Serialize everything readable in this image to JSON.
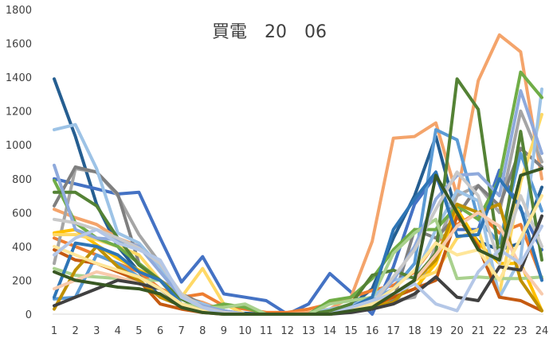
{
  "chart_data": {
    "type": "line",
    "title": "買電　20　06",
    "xlabel": "",
    "ylabel": "",
    "x": [
      1,
      2,
      3,
      4,
      5,
      6,
      7,
      8,
      9,
      10,
      11,
      12,
      13,
      14,
      15,
      16,
      17,
      18,
      19,
      20,
      21,
      22,
      23,
      24
    ],
    "ylim": [
      0,
      1800
    ],
    "yticks": [
      0,
      200,
      400,
      600,
      800,
      1000,
      1200,
      1400,
      1600,
      1800
    ],
    "grid": false,
    "legend": "none",
    "series": [
      {
        "color": "#255e91",
        "values": [
          1390,
          1050,
          650,
          400,
          250,
          100,
          50,
          20,
          10,
          5,
          0,
          0,
          0,
          0,
          50,
          150,
          450,
          700,
          1050,
          580,
          430,
          380,
          420,
          750
        ]
      },
      {
        "color": "#4472c4",
        "values": [
          800,
          770,
          740,
          710,
          720,
          450,
          190,
          340,
          120,
          100,
          80,
          0,
          60,
          240,
          130,
          0,
          280,
          650,
          820,
          500,
          500,
          850,
          620,
          380
        ]
      },
      {
        "color": "#ed7d31",
        "values": [
          450,
          400,
          350,
          300,
          250,
          150,
          100,
          120,
          50,
          30,
          10,
          10,
          30,
          60,
          100,
          140,
          170,
          250,
          420,
          530,
          600,
          480,
          530,
          210
        ]
      },
      {
        "color": "#f4a46b",
        "values": [
          620,
          570,
          530,
          450,
          400,
          300,
          100,
          70,
          20,
          0,
          0,
          0,
          10,
          30,
          100,
          430,
          1040,
          1050,
          1130,
          700,
          1380,
          1650,
          1550,
          800
        ]
      },
      {
        "color": "#a5a5a5",
        "values": [
          300,
          860,
          840,
          700,
          470,
          300,
          100,
          60,
          20,
          0,
          0,
          0,
          0,
          20,
          30,
          40,
          80,
          100,
          400,
          700,
          760,
          600,
          1200,
          900
        ]
      },
      {
        "color": "#7f7f7f",
        "values": [
          640,
          870,
          840,
          710,
          300,
          200,
          120,
          60,
          20,
          0,
          0,
          0,
          0,
          0,
          20,
          40,
          80,
          500,
          450,
          580,
          760,
          640,
          980,
          870
        ]
      },
      {
        "color": "#ffc000",
        "values": [
          480,
          500,
          410,
          330,
          260,
          200,
          50,
          20,
          0,
          0,
          0,
          0,
          0,
          0,
          20,
          40,
          100,
          150,
          300,
          620,
          420,
          300,
          300,
          20
        ]
      },
      {
        "color": "#ffd966",
        "values": [
          470,
          470,
          440,
          400,
          350,
          200,
          100,
          270,
          60,
          0,
          0,
          0,
          0,
          20,
          40,
          60,
          120,
          200,
          250,
          450,
          500,
          120,
          780,
          1180
        ]
      },
      {
        "color": "#5b9bd5",
        "values": [
          90,
          100,
          350,
          300,
          220,
          150,
          60,
          20,
          0,
          0,
          0,
          0,
          0,
          0,
          40,
          80,
          150,
          300,
          1090,
          1030,
          560,
          420,
          950,
          610
        ]
      },
      {
        "color": "#9dc3e6",
        "values": [
          1090,
          1120,
          860,
          480,
          420,
          280,
          100,
          60,
          20,
          0,
          0,
          0,
          0,
          30,
          50,
          100,
          200,
          220,
          500,
          730,
          670,
          100,
          330,
          1330
        ]
      },
      {
        "color": "#70ad47",
        "values": [
          790,
          540,
          450,
          400,
          300,
          200,
          60,
          30,
          60,
          40,
          0,
          0,
          0,
          80,
          100,
          210,
          380,
          500,
          500,
          640,
          560,
          800,
          1430,
          1280
        ]
      },
      {
        "color": "#548235",
        "values": [
          720,
          720,
          640,
          450,
          290,
          200,
          90,
          30,
          10,
          0,
          0,
          0,
          0,
          20,
          60,
          230,
          260,
          210,
          360,
          1390,
          1210,
          330,
          1080,
          320
        ]
      },
      {
        "color": "#a9d18e",
        "values": [
          270,
          230,
          220,
          210,
          200,
          200,
          60,
          40,
          40,
          60,
          0,
          0,
          0,
          60,
          80,
          100,
          360,
          480,
          560,
          210,
          220,
          210,
          210,
          220
        ]
      },
      {
        "color": "#8faadc",
        "values": [
          880,
          500,
          450,
          440,
          400,
          250,
          100,
          50,
          20,
          0,
          0,
          0,
          0,
          0,
          30,
          60,
          200,
          400,
          680,
          820,
          830,
          700,
          1320,
          950
        ]
      },
      {
        "color": "#c55a11",
        "values": [
          380,
          320,
          300,
          250,
          200,
          60,
          30,
          10,
          0,
          0,
          0,
          0,
          0,
          0,
          20,
          50,
          100,
          150,
          200,
          580,
          400,
          100,
          80,
          20
        ]
      },
      {
        "color": "#bf9000",
        "values": [
          30,
          260,
          400,
          280,
          200,
          100,
          50,
          20,
          0,
          0,
          0,
          0,
          0,
          0,
          20,
          40,
          70,
          200,
          320,
          650,
          600,
          650,
          200,
          20
        ]
      },
      {
        "color": "#2e75b6",
        "values": [
          100,
          420,
          400,
          350,
          250,
          200,
          60,
          20,
          0,
          0,
          0,
          0,
          0,
          0,
          40,
          100,
          500,
          680,
          840,
          460,
          470,
          800,
          630,
          200
        ]
      },
      {
        "color": "#c9c9c9",
        "values": [
          560,
          540,
          500,
          450,
          390,
          300,
          120,
          40,
          10,
          0,
          0,
          0,
          0,
          0,
          20,
          60,
          220,
          380,
          620,
          840,
          700,
          300,
          700,
          400
        ]
      },
      {
        "color": "#f8cbad",
        "values": [
          150,
          200,
          250,
          220,
          180,
          150,
          60,
          20,
          0,
          0,
          0,
          0,
          0,
          0,
          30,
          80,
          120,
          200,
          350,
          520,
          600,
          520,
          280,
          120
        ]
      },
      {
        "color": "#404040",
        "values": [
          50,
          100,
          150,
          200,
          180,
          150,
          50,
          20,
          0,
          0,
          0,
          0,
          0,
          0,
          10,
          30,
          60,
          120,
          220,
          100,
          80,
          280,
          260,
          580
        ]
      },
      {
        "color": "#ffe699",
        "values": [
          400,
          350,
          300,
          260,
          220,
          150,
          60,
          20,
          0,
          0,
          0,
          0,
          0,
          0,
          30,
          60,
          150,
          260,
          420,
          350,
          380,
          200,
          450,
          700
        ]
      },
      {
        "color": "#b4c7e7",
        "values": [
          350,
          450,
          500,
          420,
          380,
          320,
          100,
          40,
          0,
          0,
          0,
          0,
          0,
          0,
          40,
          80,
          120,
          180,
          60,
          20,
          250,
          380,
          300,
          520
        ]
      },
      {
        "color": "#385723",
        "values": [
          250,
          200,
          180,
          160,
          150,
          120,
          40,
          10,
          0,
          0,
          0,
          0,
          0,
          0,
          20,
          40,
          120,
          200,
          820,
          600,
          380,
          320,
          820,
          860
        ]
      }
    ]
  }
}
